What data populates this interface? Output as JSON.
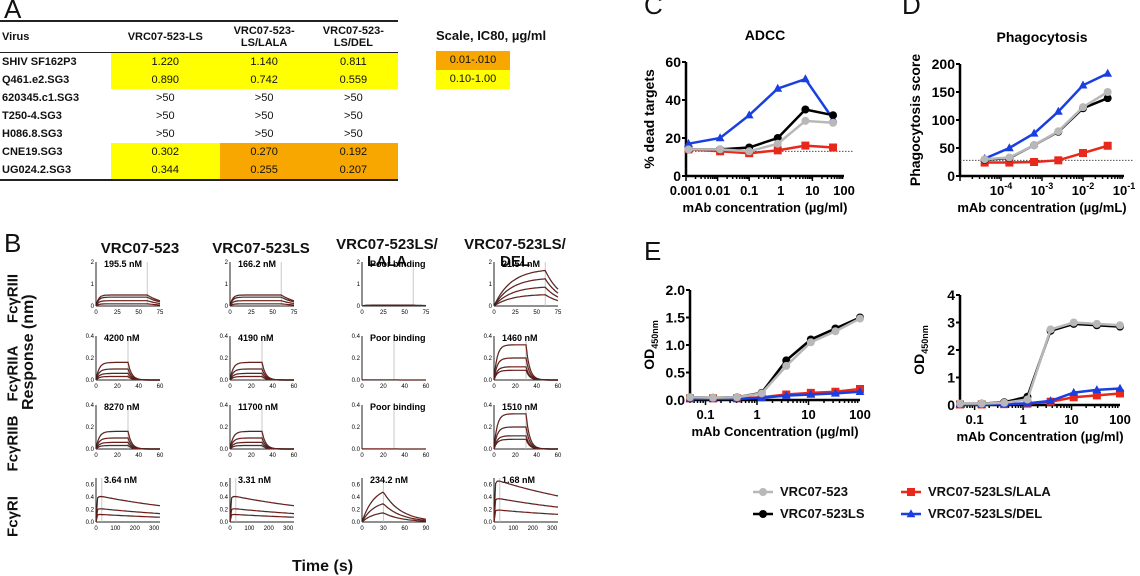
{
  "panels": {
    "A": "A",
    "B": "B",
    "C": "C",
    "D": "D",
    "E": "E"
  },
  "tableA": {
    "headers": [
      "Virus",
      "VRC07-523-LS",
      "VRC07-523-\nLS/LALA",
      "VRC07-523-\nLS/DEL"
    ],
    "rows": [
      {
        "virus": "SHIV SF162P3",
        "values": [
          "1.220",
          "1.140",
          "0.811"
        ],
        "colors": [
          "y",
          "y",
          "y"
        ]
      },
      {
        "virus": "Q461.e2.SG3",
        "values": [
          "0.890",
          "0.742",
          "0.559"
        ],
        "colors": [
          "y",
          "y",
          "y"
        ]
      },
      {
        "virus": "620345.c1.SG3",
        "values": [
          ">50",
          ">50",
          ">50"
        ],
        "colors": [
          "",
          "",
          ""
        ]
      },
      {
        "virus": "T250-4.SG3",
        "values": [
          ">50",
          ">50",
          ">50"
        ],
        "colors": [
          "",
          "",
          ""
        ]
      },
      {
        "virus": "H086.8.SG3",
        "values": [
          ">50",
          ">50",
          ">50"
        ],
        "colors": [
          "",
          "",
          ""
        ]
      },
      {
        "virus": "CNE19.SG3",
        "values": [
          "0.302",
          "0.270",
          "0.192"
        ],
        "colors": [
          "y",
          "o",
          "o"
        ]
      },
      {
        "virus": "UG024.2.SG3",
        "values": [
          "0.344",
          "0.255",
          "0.207"
        ],
        "colors": [
          "y",
          "o",
          "o"
        ]
      }
    ],
    "scale": {
      "title": "Scale, IC80, µg/ml",
      "items": [
        {
          "label": "0.01-.010",
          "color": "#f7a700"
        },
        {
          "label": "0.10-1.00",
          "color": "#ffff00"
        }
      ]
    }
  },
  "colors": {
    "VRC07-523": "#b8b8b8",
    "VRC07-523LS": "#000000",
    "VRC07-523LS/LALA": "#e8281a",
    "VRC07-523LS/DEL": "#1a3fe0",
    "fit": "#e8281a"
  },
  "panelB": {
    "columns": [
      "VRC07-523",
      "VRC07-523LS",
      "VRC07-523LS/\nLALA",
      "VRC07-523LS/\nDEL"
    ],
    "rows": [
      "FcγRIII",
      "FcγRIIA",
      "FcγRIIB",
      "FcγRI"
    ],
    "ylabel": "Response (nm)",
    "xlabel": "Time (s)",
    "cells": [
      [
        {
          "label": "195.5 nM"
        },
        {
          "label": "166.2 nM"
        },
        {
          "label": "Poor binding"
        },
        {
          "label": "21.54 nM"
        }
      ],
      [
        {
          "label": "4200 nM"
        },
        {
          "label": "4190 nM"
        },
        {
          "label": "Poor binding"
        },
        {
          "label": "1460 nM"
        }
      ],
      [
        {
          "label": "8270 nM"
        },
        {
          "label": "11700 nM"
        },
        {
          "label": "Poor binding"
        },
        {
          "label": "1510 nM"
        }
      ],
      [
        {
          "label": "3.64 nM"
        },
        {
          "label": "3.31 nM"
        },
        {
          "label": "234.2 nM"
        },
        {
          "label": "1.68 nM"
        }
      ]
    ]
  },
  "chart_data": [
    {
      "id": "C",
      "type": "line",
      "title": "ADCC",
      "xlabel": "mAb concentration (µg/ml)",
      "ylabel": "% dead targets",
      "xscale": "log",
      "xlim": [
        0.001,
        100
      ],
      "ylim": [
        0,
        60
      ],
      "xticks": [
        "0.001",
        "0.01",
        "0.1",
        "1",
        "10",
        "100"
      ],
      "yticks": [
        "0",
        "20",
        "40",
        "60"
      ],
      "baseline": 13,
      "x": [
        0.0012,
        0.012,
        0.1,
        0.8,
        6,
        45
      ],
      "series": [
        {
          "name": "VRC07-523",
          "values": [
            14,
            14,
            13,
            17,
            29,
            28
          ]
        },
        {
          "name": "VRC07-523LS",
          "values": [
            14,
            14,
            15,
            20,
            35,
            32
          ]
        },
        {
          "name": "VRC07-523LS/LALA",
          "values": [
            14,
            13,
            12,
            13.5,
            16,
            15
          ]
        },
        {
          "name": "VRC07-523LS/DEL",
          "values": [
            17,
            20,
            32,
            46,
            51,
            30
          ]
        }
      ]
    },
    {
      "id": "D",
      "type": "line",
      "title": "Phagocytosis",
      "xlabel": "mAb concentration (µg/mL)",
      "ylabel": "Phagocytosis score",
      "xscale": "log",
      "xlim": [
        1e-05,
        0.1
      ],
      "ylim": [
        0,
        200
      ],
      "xticks": [
        "10-4",
        "10-3",
        "10-2",
        "10-1"
      ],
      "yticks": [
        "0",
        "50",
        "100",
        "150",
        "200"
      ],
      "baseline": 28,
      "x": [
        4e-05,
        0.00016,
        0.00064,
        0.0025,
        0.01,
        0.04
      ],
      "series": [
        {
          "name": "VRC07-523",
          "values": [
            30,
            33,
            55,
            80,
            123,
            150
          ]
        },
        {
          "name": "VRC07-523LS",
          "values": [
            29,
            32,
            55,
            79,
            121,
            139
          ]
        },
        {
          "name": "VRC07-523LS/LALA",
          "values": [
            24,
            24,
            25,
            28,
            41,
            54
          ]
        },
        {
          "name": "VRC07-523LS/DEL",
          "values": [
            31,
            50,
            76,
            115,
            162,
            183
          ]
        }
      ]
    },
    {
      "id": "E1",
      "type": "line",
      "title": "",
      "xlabel": "mAb Concentration (µg/ml)",
      "ylabel": "OD450nm",
      "xscale": "log",
      "xlim": [
        0.05,
        100
      ],
      "ylim": [
        0,
        2.0
      ],
      "xticks": [
        "0.1",
        "1",
        "10",
        "100"
      ],
      "yticks": [
        "0.0",
        "0.5",
        "1.0",
        "1.5",
        "2.0"
      ],
      "x": [
        0.05,
        0.14,
        0.41,
        1.23,
        3.7,
        11.1,
        33.3,
        100
      ],
      "series": [
        {
          "name": "VRC07-523",
          "values": [
            0.05,
            0.04,
            0.05,
            0.12,
            0.62,
            1.05,
            1.25,
            1.48
          ]
        },
        {
          "name": "VRC07-523LS",
          "values": [
            0.05,
            0.04,
            0.05,
            0.13,
            0.72,
            1.1,
            1.3,
            1.5
          ]
        },
        {
          "name": "VRC07-523LS/LALA",
          "values": [
            0.03,
            0.03,
            0.03,
            0.05,
            0.1,
            0.13,
            0.15,
            0.2
          ]
        },
        {
          "name": "VRC07-523LS/DEL",
          "values": [
            0.02,
            0.02,
            0.02,
            0.04,
            0.08,
            0.1,
            0.12,
            0.15
          ]
        }
      ]
    },
    {
      "id": "E2",
      "type": "line",
      "title": "",
      "xlabel": "mAb Concentration (µg/ml)",
      "ylabel": "OD450nm",
      "xscale": "log",
      "xlim": [
        0.05,
        100
      ],
      "ylim": [
        0,
        4
      ],
      "xticks": [
        "0.1",
        "1",
        "10",
        "100"
      ],
      "yticks": [
        "0",
        "1",
        "2",
        "3",
        "4"
      ],
      "x": [
        0.05,
        0.14,
        0.41,
        1.23,
        3.7,
        11.1,
        33.3,
        100
      ],
      "series": [
        {
          "name": "VRC07-523",
          "values": [
            0.05,
            0.05,
            0.08,
            0.2,
            2.75,
            3.0,
            2.95,
            2.9
          ]
        },
        {
          "name": "VRC07-523LS",
          "values": [
            0.05,
            0.05,
            0.1,
            0.3,
            2.7,
            2.95,
            2.9,
            2.85
          ]
        },
        {
          "name": "VRC07-523LS/LALA",
          "values": [
            0.02,
            0.02,
            0.03,
            0.05,
            0.12,
            0.28,
            0.35,
            0.42
          ]
        },
        {
          "name": "VRC07-523LS/DEL",
          "values": [
            0.02,
            0.02,
            0.03,
            0.06,
            0.15,
            0.45,
            0.55,
            0.6
          ]
        }
      ]
    }
  ],
  "legend": [
    {
      "name": "VRC07-523",
      "marker": "circle"
    },
    {
      "name": "VRC07-523LS",
      "marker": "circle"
    },
    {
      "name": "VRC07-523LS/LALA",
      "marker": "square"
    },
    {
      "name": "VRC07-523LS/DEL",
      "marker": "triangle"
    }
  ]
}
